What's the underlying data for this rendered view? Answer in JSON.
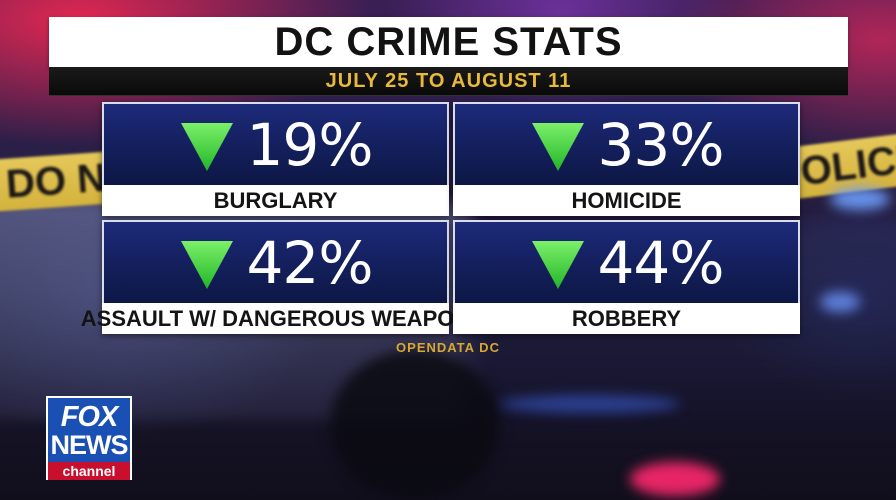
{
  "background": {
    "tape_left_text": "DO NO",
    "tape_right_text": "POLICE LIN"
  },
  "header": {
    "title": "DC CRIME STATS",
    "date_range": "JULY 25 TO AUGUST 11"
  },
  "stats": [
    {
      "value": "19%",
      "label": "BURGLARY",
      "direction": "down"
    },
    {
      "value": "33%",
      "label": "HOMICIDE",
      "direction": "down"
    },
    {
      "value": "42%",
      "label": "ASSAULT W/ DANGEROUS WEAPON",
      "direction": "down"
    },
    {
      "value": "44%",
      "label": "ROBBERY",
      "direction": "down"
    }
  ],
  "source": "OPENDATA DC",
  "logo": {
    "line1": "FOX",
    "line2": "NEWS",
    "line3": "channel"
  },
  "colors": {
    "arrow_green": "#3fd13f",
    "tile_blue": "#14205e",
    "date_gold": "#e9b93a",
    "logo_blue": "#1a4fb4",
    "logo_red": "#c8102e"
  }
}
